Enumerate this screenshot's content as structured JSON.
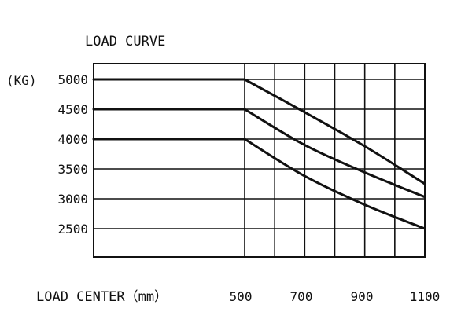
{
  "chart_data": {
    "type": "line",
    "title": "LOAD CURVE",
    "y_unit": "(KG)",
    "xlabel": "LOAD CENTER（mm）",
    "x_tick_labels": [
      "500",
      "700",
      "900",
      "1100"
    ],
    "y_tick_labels": [
      "5000",
      "4500",
      "4000",
      "3500",
      "3000",
      "2500"
    ],
    "xlim": [
      0,
      1100
    ],
    "ylim": [
      2000,
      5000
    ],
    "x_grid": [
      500,
      600,
      700,
      800,
      900,
      1000,
      1100
    ],
    "y_grid": [
      2500,
      3000,
      3500,
      4000,
      4500,
      5000
    ],
    "grid": true,
    "series": [
      {
        "x": [
          0,
          500,
          700,
          900,
          1100
        ],
        "values": [
          5000,
          5000,
          4450,
          3880,
          3250
        ]
      },
      {
        "x": [
          0,
          500,
          700,
          900,
          1100
        ],
        "values": [
          4500,
          4500,
          3900,
          3440,
          3030
        ]
      },
      {
        "x": [
          0,
          500,
          700,
          900,
          1100
        ],
        "values": [
          4000,
          4000,
          3380,
          2900,
          2500
        ]
      }
    ]
  }
}
